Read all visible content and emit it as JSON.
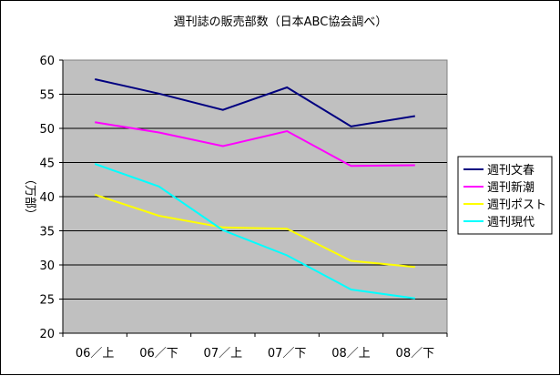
{
  "chart_data": {
    "type": "line",
    "title": "週刊誌の販売部数（日本ABC協会調べ）",
    "xlabel": "",
    "ylabel": "（万部）",
    "categories": [
      "06／上",
      "06／下",
      "07／上",
      "07／下",
      "08／上",
      "08／下"
    ],
    "ylim": [
      20,
      60
    ],
    "yticks": [
      20,
      25,
      30,
      35,
      40,
      45,
      50,
      55,
      60
    ],
    "grid": true,
    "plot_background": "#c0c0c0",
    "legend_position": "right",
    "series": [
      {
        "name": "週刊文春",
        "color": "#000080",
        "values": [
          57.2,
          55.1,
          52.7,
          56.0,
          50.3,
          51.8
        ]
      },
      {
        "name": "週刊新潮",
        "color": "#ff00ff",
        "values": [
          50.9,
          49.4,
          47.4,
          49.6,
          44.5,
          44.6
        ]
      },
      {
        "name": "週刊ポスト",
        "color": "#ffff00",
        "values": [
          40.3,
          37.2,
          35.5,
          35.3,
          30.6,
          29.7
        ]
      },
      {
        "name": "週刊現代",
        "color": "#00ffff",
        "values": [
          44.8,
          41.5,
          35.1,
          31.4,
          26.4,
          25.1
        ]
      }
    ]
  }
}
